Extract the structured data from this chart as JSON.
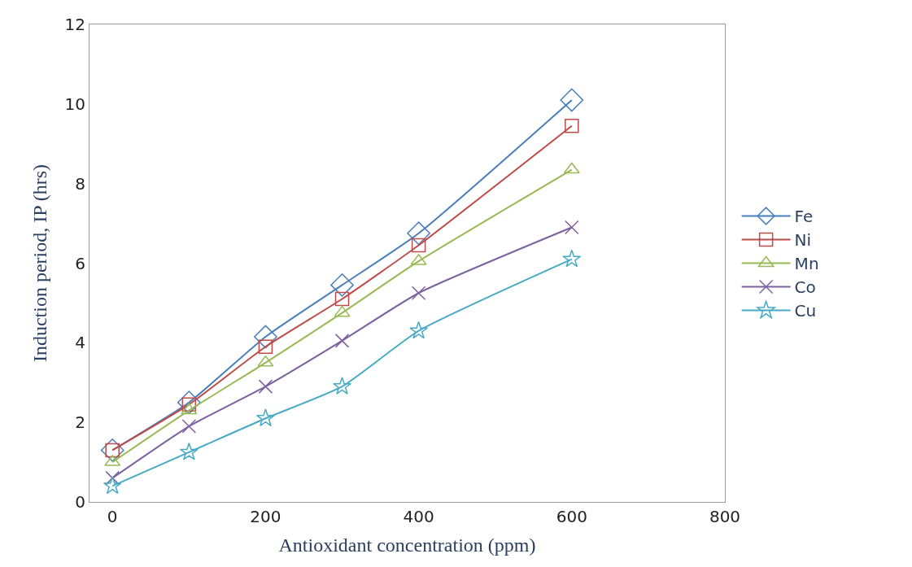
{
  "chart_data": {
    "type": "line",
    "xlabel": "Antioxidant concentration (ppm)",
    "ylabel": "Induction period, IP (hrs)",
    "x": [
      0,
      100,
      200,
      300,
      400,
      600
    ],
    "xlim": [
      -30,
      800
    ],
    "xticks": [
      0,
      200,
      400,
      600,
      800
    ],
    "ylim": [
      0,
      12
    ],
    "yticks": [
      0,
      2,
      4,
      6,
      8,
      10,
      12
    ],
    "legend": "right",
    "series": [
      {
        "name": "Fe",
        "color": "#4a7ebb",
        "marker": "diamond",
        "values": [
          1.3,
          2.5,
          4.15,
          5.45,
          6.75,
          10.1
        ]
      },
      {
        "name": "Ni",
        "color": "#be4b48",
        "marker": "square",
        "values": [
          1.3,
          2.45,
          3.9,
          5.1,
          6.45,
          9.45
        ]
      },
      {
        "name": "Mn",
        "color": "#98b954",
        "marker": "triangle",
        "values": [
          1.0,
          2.3,
          3.5,
          4.75,
          6.05,
          8.35
        ]
      },
      {
        "name": "Co",
        "color": "#7d60a0",
        "marker": "cross",
        "values": [
          0.6,
          1.9,
          2.9,
          4.05,
          5.25,
          6.9
        ]
      },
      {
        "name": "Cu",
        "color": "#46aac5",
        "marker": "star",
        "values": [
          0.4,
          1.25,
          2.1,
          2.9,
          4.3,
          6.1
        ]
      }
    ]
  }
}
